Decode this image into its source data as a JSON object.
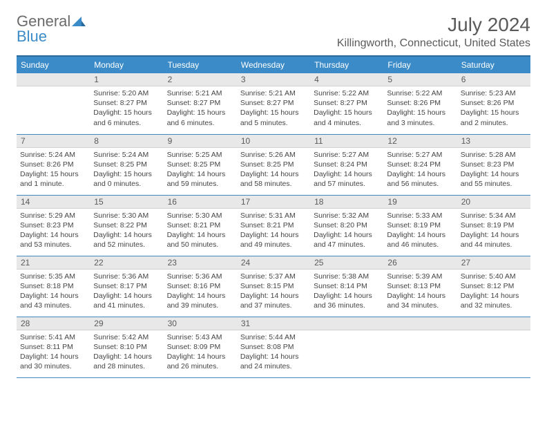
{
  "logo": {
    "general": "General",
    "blue": "Blue"
  },
  "title": "July 2024",
  "location": "Killingworth, Connecticut, United States",
  "colors": {
    "header_bg": "#3b8bc9",
    "header_border": "#2a6a9a",
    "daynum_bg": "#e8e8e8",
    "row_border": "#3b8bc9",
    "text": "#444444"
  },
  "day_headers": [
    "Sunday",
    "Monday",
    "Tuesday",
    "Wednesday",
    "Thursday",
    "Friday",
    "Saturday"
  ],
  "weeks": [
    [
      null,
      {
        "n": "1",
        "sr": "Sunrise: 5:20 AM",
        "ss": "Sunset: 8:27 PM",
        "dl": "Daylight: 15 hours and 6 minutes."
      },
      {
        "n": "2",
        "sr": "Sunrise: 5:21 AM",
        "ss": "Sunset: 8:27 PM",
        "dl": "Daylight: 15 hours and 6 minutes."
      },
      {
        "n": "3",
        "sr": "Sunrise: 5:21 AM",
        "ss": "Sunset: 8:27 PM",
        "dl": "Daylight: 15 hours and 5 minutes."
      },
      {
        "n": "4",
        "sr": "Sunrise: 5:22 AM",
        "ss": "Sunset: 8:27 PM",
        "dl": "Daylight: 15 hours and 4 minutes."
      },
      {
        "n": "5",
        "sr": "Sunrise: 5:22 AM",
        "ss": "Sunset: 8:26 PM",
        "dl": "Daylight: 15 hours and 3 minutes."
      },
      {
        "n": "6",
        "sr": "Sunrise: 5:23 AM",
        "ss": "Sunset: 8:26 PM",
        "dl": "Daylight: 15 hours and 2 minutes."
      }
    ],
    [
      {
        "n": "7",
        "sr": "Sunrise: 5:24 AM",
        "ss": "Sunset: 8:26 PM",
        "dl": "Daylight: 15 hours and 1 minute."
      },
      {
        "n": "8",
        "sr": "Sunrise: 5:24 AM",
        "ss": "Sunset: 8:25 PM",
        "dl": "Daylight: 15 hours and 0 minutes."
      },
      {
        "n": "9",
        "sr": "Sunrise: 5:25 AM",
        "ss": "Sunset: 8:25 PM",
        "dl": "Daylight: 14 hours and 59 minutes."
      },
      {
        "n": "10",
        "sr": "Sunrise: 5:26 AM",
        "ss": "Sunset: 8:25 PM",
        "dl": "Daylight: 14 hours and 58 minutes."
      },
      {
        "n": "11",
        "sr": "Sunrise: 5:27 AM",
        "ss": "Sunset: 8:24 PM",
        "dl": "Daylight: 14 hours and 57 minutes."
      },
      {
        "n": "12",
        "sr": "Sunrise: 5:27 AM",
        "ss": "Sunset: 8:24 PM",
        "dl": "Daylight: 14 hours and 56 minutes."
      },
      {
        "n": "13",
        "sr": "Sunrise: 5:28 AM",
        "ss": "Sunset: 8:23 PM",
        "dl": "Daylight: 14 hours and 55 minutes."
      }
    ],
    [
      {
        "n": "14",
        "sr": "Sunrise: 5:29 AM",
        "ss": "Sunset: 8:23 PM",
        "dl": "Daylight: 14 hours and 53 minutes."
      },
      {
        "n": "15",
        "sr": "Sunrise: 5:30 AM",
        "ss": "Sunset: 8:22 PM",
        "dl": "Daylight: 14 hours and 52 minutes."
      },
      {
        "n": "16",
        "sr": "Sunrise: 5:30 AM",
        "ss": "Sunset: 8:21 PM",
        "dl": "Daylight: 14 hours and 50 minutes."
      },
      {
        "n": "17",
        "sr": "Sunrise: 5:31 AM",
        "ss": "Sunset: 8:21 PM",
        "dl": "Daylight: 14 hours and 49 minutes."
      },
      {
        "n": "18",
        "sr": "Sunrise: 5:32 AM",
        "ss": "Sunset: 8:20 PM",
        "dl": "Daylight: 14 hours and 47 minutes."
      },
      {
        "n": "19",
        "sr": "Sunrise: 5:33 AM",
        "ss": "Sunset: 8:19 PM",
        "dl": "Daylight: 14 hours and 46 minutes."
      },
      {
        "n": "20",
        "sr": "Sunrise: 5:34 AM",
        "ss": "Sunset: 8:19 PM",
        "dl": "Daylight: 14 hours and 44 minutes."
      }
    ],
    [
      {
        "n": "21",
        "sr": "Sunrise: 5:35 AM",
        "ss": "Sunset: 8:18 PM",
        "dl": "Daylight: 14 hours and 43 minutes."
      },
      {
        "n": "22",
        "sr": "Sunrise: 5:36 AM",
        "ss": "Sunset: 8:17 PM",
        "dl": "Daylight: 14 hours and 41 minutes."
      },
      {
        "n": "23",
        "sr": "Sunrise: 5:36 AM",
        "ss": "Sunset: 8:16 PM",
        "dl": "Daylight: 14 hours and 39 minutes."
      },
      {
        "n": "24",
        "sr": "Sunrise: 5:37 AM",
        "ss": "Sunset: 8:15 PM",
        "dl": "Daylight: 14 hours and 37 minutes."
      },
      {
        "n": "25",
        "sr": "Sunrise: 5:38 AM",
        "ss": "Sunset: 8:14 PM",
        "dl": "Daylight: 14 hours and 36 minutes."
      },
      {
        "n": "26",
        "sr": "Sunrise: 5:39 AM",
        "ss": "Sunset: 8:13 PM",
        "dl": "Daylight: 14 hours and 34 minutes."
      },
      {
        "n": "27",
        "sr": "Sunrise: 5:40 AM",
        "ss": "Sunset: 8:12 PM",
        "dl": "Daylight: 14 hours and 32 minutes."
      }
    ],
    [
      {
        "n": "28",
        "sr": "Sunrise: 5:41 AM",
        "ss": "Sunset: 8:11 PM",
        "dl": "Daylight: 14 hours and 30 minutes."
      },
      {
        "n": "29",
        "sr": "Sunrise: 5:42 AM",
        "ss": "Sunset: 8:10 PM",
        "dl": "Daylight: 14 hours and 28 minutes."
      },
      {
        "n": "30",
        "sr": "Sunrise: 5:43 AM",
        "ss": "Sunset: 8:09 PM",
        "dl": "Daylight: 14 hours and 26 minutes."
      },
      {
        "n": "31",
        "sr": "Sunrise: 5:44 AM",
        "ss": "Sunset: 8:08 PM",
        "dl": "Daylight: 14 hours and 24 minutes."
      },
      null,
      null,
      null
    ]
  ]
}
